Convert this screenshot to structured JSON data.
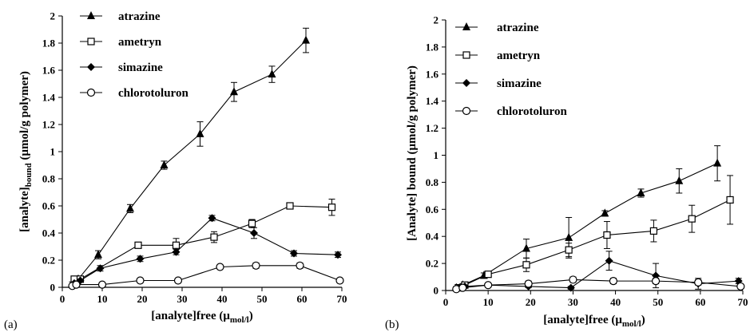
{
  "chart_data": [
    {
      "type": "line",
      "panel_label": "(a)",
      "xlabel_main": "[analyte]free (",
      "xlabel_unit": "μ",
      "xlabel_unit_sub": "mol/l",
      "xlabel_close": ")",
      "ylabel_main": "[analyte]",
      "ylabel_sub": "bound",
      "ylabel_rest": " (μmol/g polymer)",
      "xlim": [
        0,
        70
      ],
      "ylim": [
        0,
        2
      ],
      "xticks": [
        "0",
        "10",
        "20",
        "30",
        "40",
        "50",
        "60",
        "70"
      ],
      "yticks": [
        "0",
        "0.2",
        "0.4",
        "0.6",
        "0.8",
        "1",
        "1.2",
        "1.4",
        "1.6",
        "1.8",
        "2"
      ],
      "legend_position": "top-left",
      "series": [
        {
          "name": "atrazine",
          "marker": "triangle-filled",
          "x": [
            2.5,
            4,
            9,
            17,
            25.5,
            34.5,
            43,
            52.5,
            61
          ],
          "y": [
            0.02,
            0.06,
            0.24,
            0.58,
            0.9,
            1.13,
            1.44,
            1.57,
            1.82
          ],
          "err": [
            0.02,
            0.02,
            0.03,
            0.03,
            0.03,
            0.09,
            0.07,
            0.06,
            0.09
          ]
        },
        {
          "name": "ametryn",
          "marker": "square-open",
          "x": [
            3,
            4.5,
            19,
            28.5,
            38,
            47.5,
            57,
            67.5
          ],
          "y": [
            0.06,
            0.06,
            0.31,
            0.31,
            0.37,
            0.47,
            0.6,
            0.59
          ],
          "err": [
            0.02,
            0.02,
            0.02,
            0.05,
            0.04,
            0.03,
            0.01,
            0.06
          ]
        },
        {
          "name": "simazine",
          "marker": "diamond-filled",
          "x": [
            3,
            4.5,
            9.5,
            19.5,
            28.5,
            37.5,
            48,
            58,
            69
          ],
          "y": [
            0.03,
            0.05,
            0.14,
            0.21,
            0.26,
            0.51,
            0.4,
            0.25,
            0.24
          ],
          "err": [
            0.01,
            0.01,
            0.02,
            0.02,
            0.02,
            0.02,
            0.04,
            0.02,
            0.02
          ]
        },
        {
          "name": "chlorotoluron",
          "marker": "circle-open",
          "x": [
            2.5,
            3.5,
            10,
            19.5,
            29,
            39.5,
            48.5,
            59.5,
            69.5
          ],
          "y": [
            0.01,
            0.02,
            0.02,
            0.05,
            0.05,
            0.15,
            0.16,
            0.16,
            0.05
          ],
          "err": [
            0.01,
            0.01,
            0.01,
            0.01,
            0.01,
            0.01,
            0.02,
            0.02,
            0.01
          ]
        }
      ]
    },
    {
      "type": "line",
      "panel_label": "(b)",
      "xlabel_main": "[analyte]free (",
      "xlabel_unit": "μ",
      "xlabel_unit_sub": "mol/l",
      "xlabel_close": ")",
      "ylabel_main": "[Analyte] bound (μmol/g polymer)",
      "xlim": [
        0,
        70
      ],
      "ylim": [
        0,
        2
      ],
      "xticks": [
        "0",
        "10",
        "20",
        "30",
        "40",
        "50",
        "60",
        "70"
      ],
      "yticks": [
        "0",
        "0.2",
        "0.4",
        "0.6",
        "0.8",
        "1",
        "1.2",
        "1.4",
        "1.6",
        "1.8",
        "2"
      ],
      "legend_position": "top-left",
      "series": [
        {
          "name": "atrazine",
          "marker": "triangle-filled",
          "x": [
            2.5,
            4,
            9,
            19,
            29,
            37.5,
            46,
            55,
            64
          ],
          "y": [
            0.02,
            0.04,
            0.11,
            0.31,
            0.39,
            0.57,
            0.72,
            0.81,
            0.94
          ],
          "err": [
            0.01,
            0.01,
            0.02,
            0.07,
            0.15,
            0.02,
            0.03,
            0.09,
            0.13
          ]
        },
        {
          "name": "ametryn",
          "marker": "square-open",
          "x": [
            3,
            4.5,
            10,
            19,
            29,
            38,
            49,
            58,
            67
          ],
          "y": [
            0.02,
            0.04,
            0.12,
            0.19,
            0.3,
            0.41,
            0.44,
            0.53,
            0.67
          ],
          "err": [
            0.01,
            0.01,
            0.02,
            0.05,
            0.05,
            0.1,
            0.08,
            0.1,
            0.18
          ]
        },
        {
          "name": "simazine",
          "marker": "diamond-filled",
          "x": [
            3,
            4.5,
            10,
            19.5,
            29.5,
            38.5,
            49.5,
            59.5,
            69
          ],
          "y": [
            0.02,
            0.03,
            0.04,
            0.03,
            0.02,
            0.22,
            0.11,
            0.05,
            0.07
          ],
          "err": [
            0.01,
            0.01,
            0.01,
            0.01,
            0.01,
            0.07,
            0.09,
            0.04,
            0.02
          ]
        },
        {
          "name": "chlorotoluron",
          "marker": "circle-open",
          "x": [
            2.5,
            4,
            10,
            19.5,
            30,
            39.5,
            49.5,
            59.5,
            69.5
          ],
          "y": [
            0.01,
            0.02,
            0.04,
            0.05,
            0.08,
            0.07,
            0.07,
            0.06,
            0.03
          ],
          "err": [
            0.01,
            0.01,
            0.01,
            0.02,
            0.02,
            0.02,
            0.02,
            0.02,
            0.01
          ]
        }
      ]
    }
  ]
}
